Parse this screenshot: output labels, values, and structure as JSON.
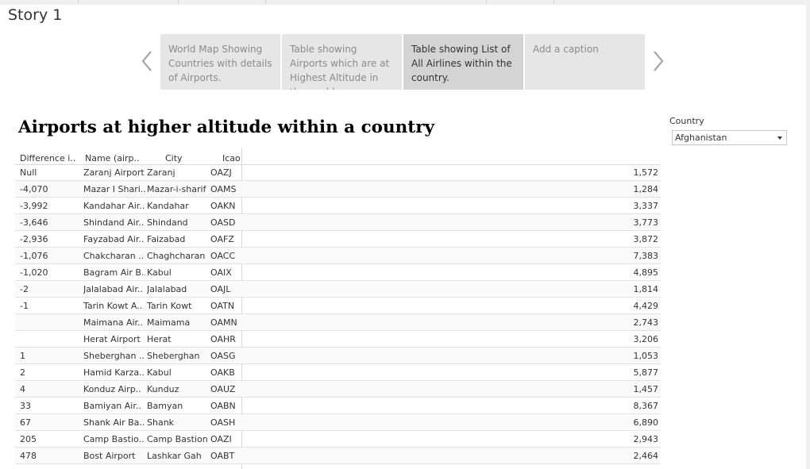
{
  "story": {
    "title": "Story 1"
  },
  "story_points": [
    {
      "caption": "World Map Showing Countries with details of Airports.",
      "active": false
    },
    {
      "caption": "Table showing Airports which are at Highest Altitude in the world",
      "active": false
    },
    {
      "caption": "Table showing List of All Airlines within the country.",
      "active": true
    },
    {
      "caption": "Add a caption",
      "active": false
    }
  ],
  "sheet": {
    "title": "Airports at higher altitude within a country"
  },
  "filter": {
    "label": "Country",
    "value": "Afghanistan"
  },
  "table": {
    "headers": {
      "difference": "Difference i..",
      "name": "Name (airp..",
      "city": "City",
      "icao": "Icao"
    },
    "rows": [
      {
        "difference": "Null",
        "name": "Zaranj Airport",
        "city": "Zaranj",
        "icao": "OAZJ",
        "value": "1,572"
      },
      {
        "difference": "-4,070",
        "name": "Mazar I Shari..",
        "city": "Mazar-i-sharif",
        "icao": "OAMS",
        "value": "1,284"
      },
      {
        "difference": "-3,992",
        "name": "Kandahar Air..",
        "city": "Kandahar",
        "icao": "OAKN",
        "value": "3,337"
      },
      {
        "difference": "-3,646",
        "name": "Shindand Air..",
        "city": "Shindand",
        "icao": "OASD",
        "value": "3,773"
      },
      {
        "difference": "-2,936",
        "name": "Fayzabad Air..",
        "city": "Faizabad",
        "icao": "OAFZ",
        "value": "3,872"
      },
      {
        "difference": "-1,076",
        "name": "Chakcharan ..",
        "city": "Chaghcharan",
        "icao": "OACC",
        "value": "7,383"
      },
      {
        "difference": "-1,020",
        "name": "Bagram Air B..",
        "city": "Kabul",
        "icao": "OAIX",
        "value": "4,895"
      },
      {
        "difference": "-2",
        "name": "Jalalabad Air..",
        "city": "Jalalabad",
        "icao": "OAJL",
        "value": "1,814"
      },
      {
        "difference": "-1",
        "name": "Tarin Kowt A..",
        "city": "Tarin Kowt",
        "icao": "OATN",
        "value": "4,429"
      },
      {
        "difference": "",
        "name": "Maimana Air..",
        "city": "Maimama",
        "icao": "OAMN",
        "value": "2,743"
      },
      {
        "difference": "",
        "name": "Herat Airport",
        "city": "Herat",
        "icao": "OAHR",
        "value": "3,206"
      },
      {
        "difference": "1",
        "name": "Sheberghan ..",
        "city": "Sheberghan",
        "icao": "OASG",
        "value": "1,053"
      },
      {
        "difference": "2",
        "name": "Hamid Karza..",
        "city": "Kabul",
        "icao": "OAKB",
        "value": "5,877"
      },
      {
        "difference": "4",
        "name": "Konduz Airp..",
        "city": "Kunduz",
        "icao": "OAUZ",
        "value": "1,457"
      },
      {
        "difference": "33",
        "name": "Bamiyan Air..",
        "city": "Bamyan",
        "icao": "OABN",
        "value": "8,367"
      },
      {
        "difference": "67",
        "name": "Shank Air Ba..",
        "city": "Shank",
        "icao": "OASH",
        "value": "6,890"
      },
      {
        "difference": "205",
        "name": "Camp Bastio..",
        "city": "Camp Bastion",
        "icao": "OAZI",
        "value": "2,943"
      },
      {
        "difference": "478",
        "name": "Bost Airport",
        "city": "Lashkar Gah",
        "icao": "OABT",
        "value": "2,464"
      }
    ]
  },
  "icons": {
    "prev": "chevron-left-icon",
    "next": "chevron-right-icon",
    "dropdown": "caret-down-icon"
  }
}
